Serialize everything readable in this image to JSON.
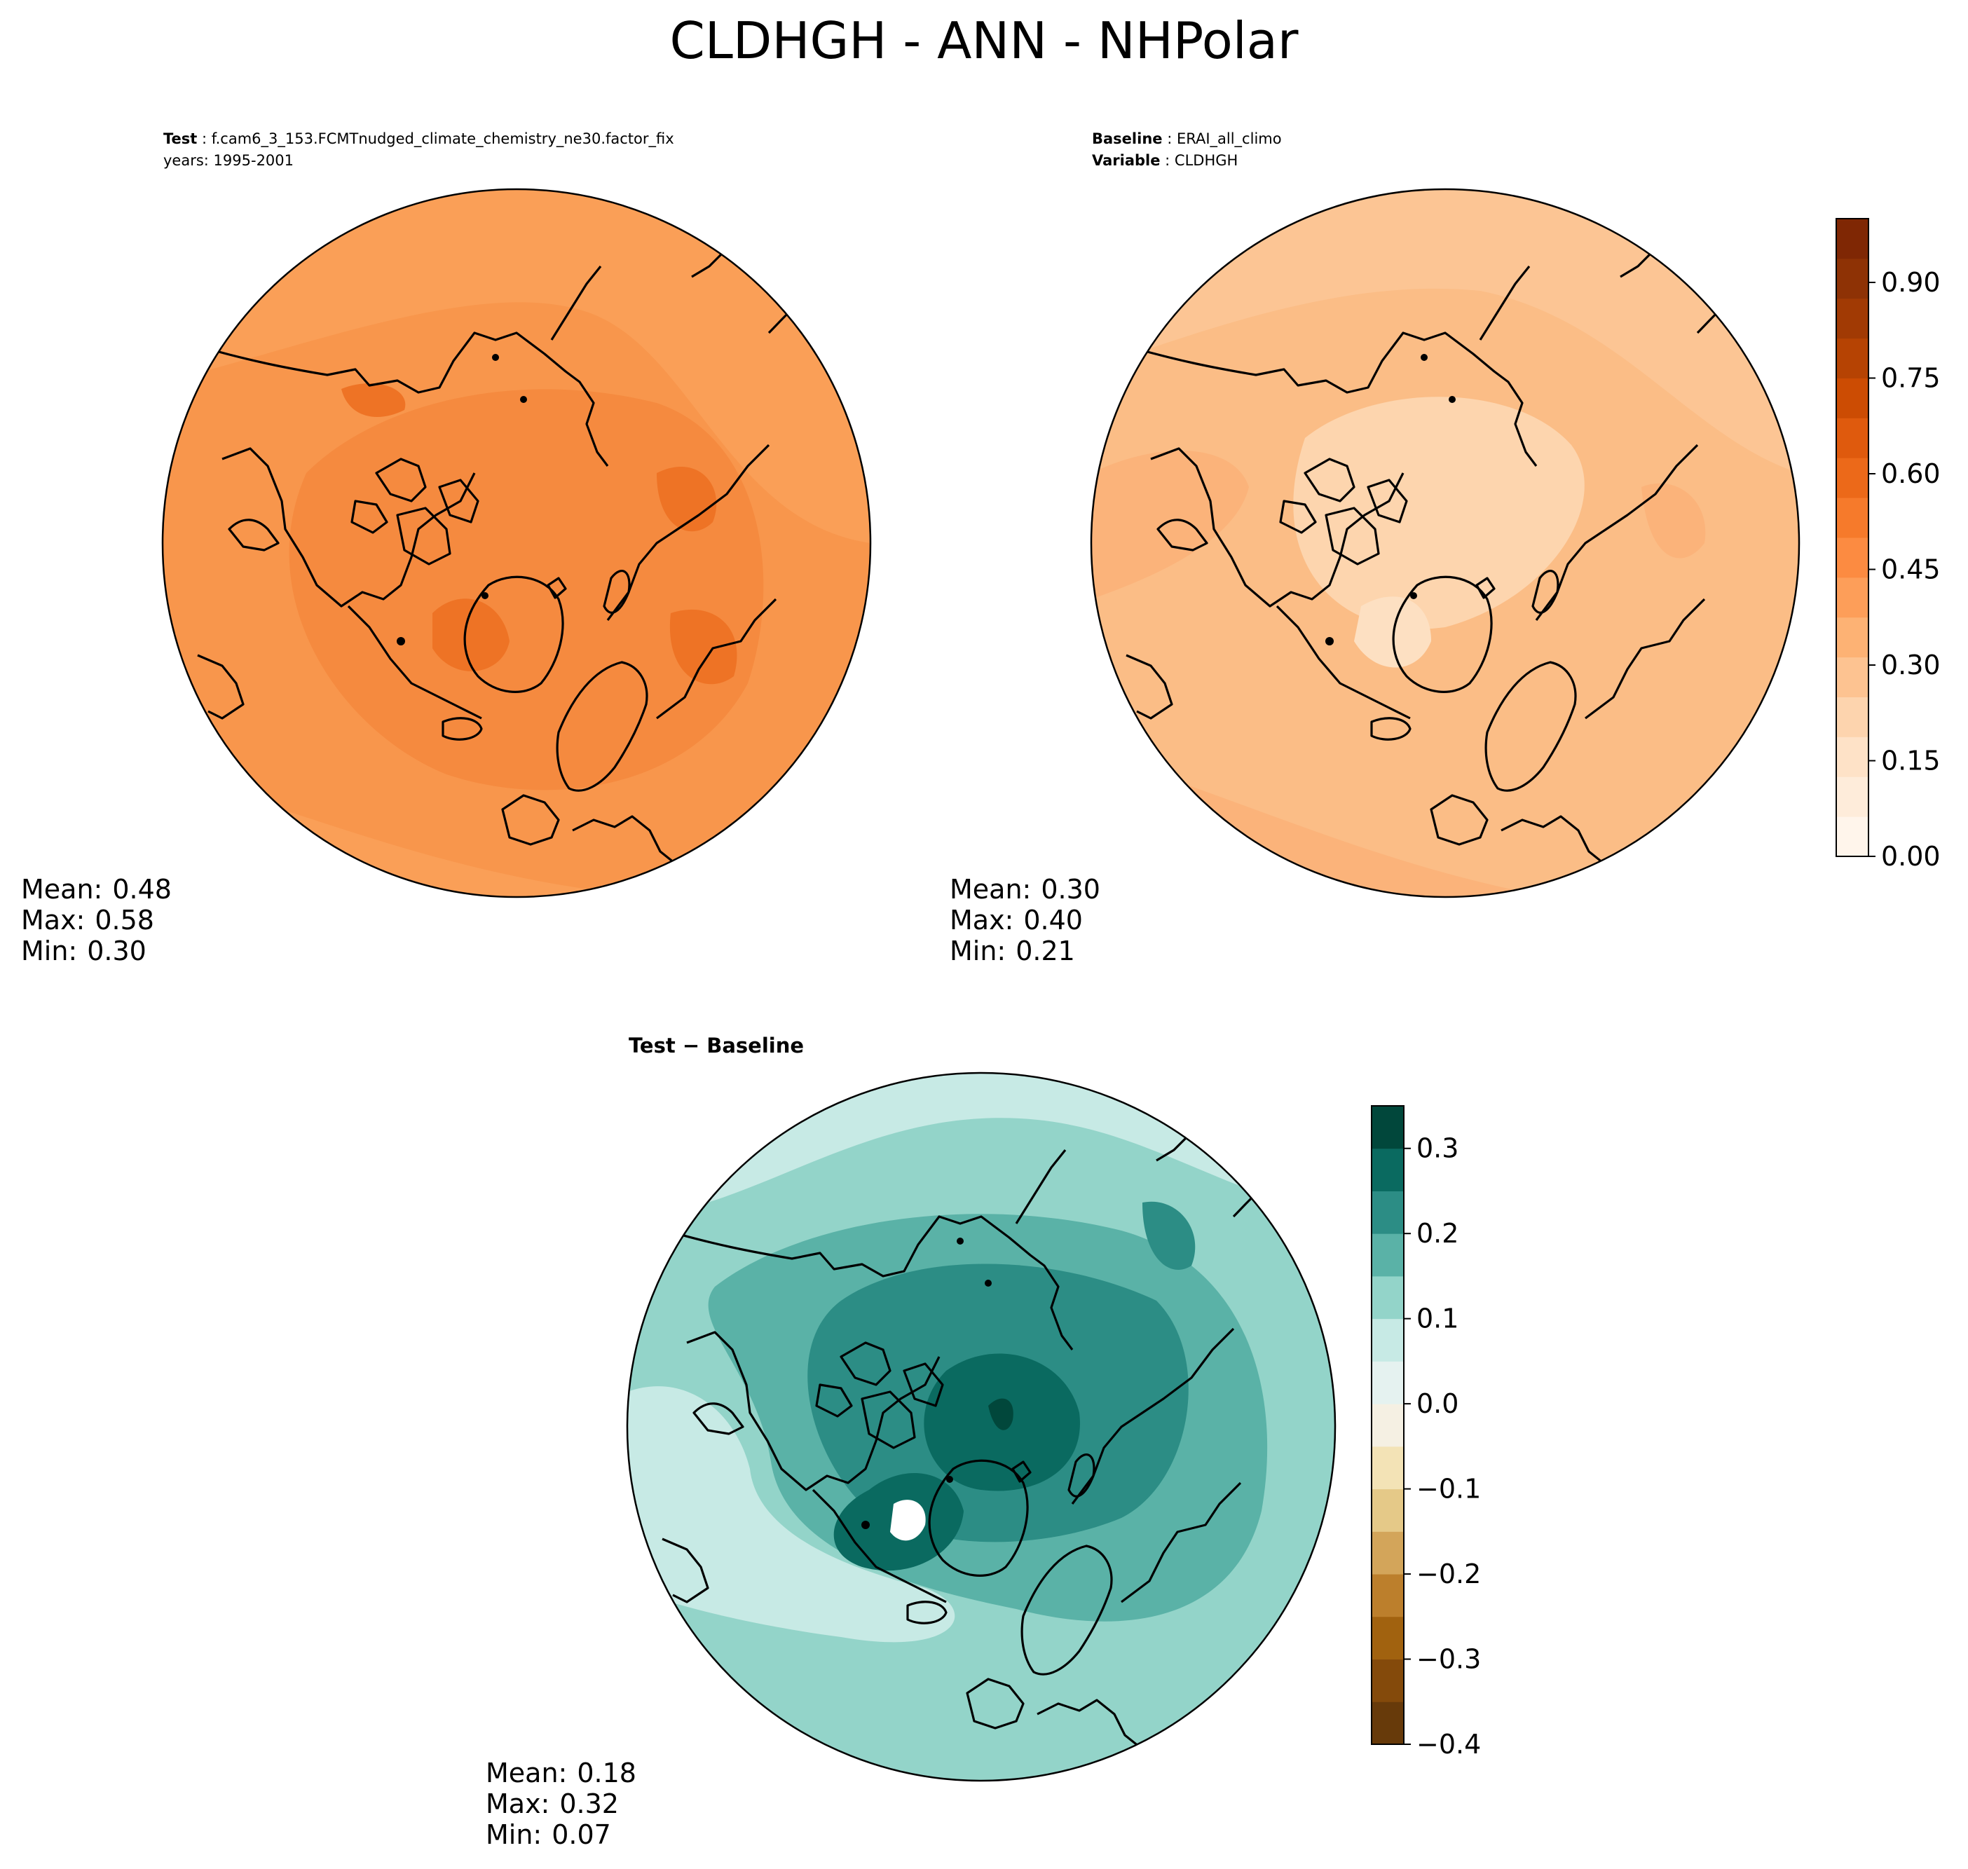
{
  "title": "CLDHGH - ANN - NHPolar",
  "panels": {
    "test": {
      "header_label": "Test",
      "header_value": "f.cam6_3_153.FCMTnudged_climate_chemistry_ne30.factor_fix",
      "header_line2": "years: 1995-2001",
      "mean_label": "Mean:",
      "mean": "0.48",
      "max_label": "Max:",
      "max": "0.58",
      "min_label": "Min:",
      "min": "0.30"
    },
    "baseline": {
      "header_label": "Baseline",
      "header_value": "ERAI_all_climo",
      "header_label2": "Variable",
      "header_value2": "CLDHGH",
      "mean_label": "Mean:",
      "mean": "0.30",
      "max_label": "Max:",
      "max": "0.40",
      "min_label": "Min:",
      "min": "0.21"
    },
    "diff": {
      "header_label": "Test − Baseline",
      "mean_label": "Mean:",
      "mean": "0.18",
      "max_label": "Max:",
      "max": "0.32",
      "min_label": "Min:",
      "min": "0.07"
    }
  },
  "colorbars": {
    "abs": {
      "ticks": [
        "0.00",
        "0.15",
        "0.30",
        "0.45",
        "0.60",
        "0.75",
        "0.90"
      ],
      "tick_values": [
        0,
        0.15,
        0.3,
        0.45,
        0.6,
        0.75,
        0.9
      ],
      "range": [
        0,
        1.0
      ],
      "colors": [
        "#fff5eb",
        "#feecda",
        "#fee2c7",
        "#fdd4ae",
        "#fdc391",
        "#fdb274",
        "#fd9e59",
        "#fc8b41",
        "#f67a2b",
        "#ec6919",
        "#df5a0d",
        "#cc4c03",
        "#b64303",
        "#a13a04",
        "#8e3205",
        "#7f2704"
      ]
    },
    "diff": {
      "ticks": [
        "−0.4",
        "−0.3",
        "−0.2",
        "−0.1",
        "0.0",
        "0.1",
        "0.2",
        "0.3"
      ],
      "tick_values": [
        -0.4,
        -0.3,
        -0.2,
        -0.1,
        0.0,
        0.1,
        0.2,
        0.3
      ],
      "range": [
        -0.4,
        0.35
      ],
      "colors": [
        "#673a0a",
        "#844a0b",
        "#a1620f",
        "#bc7f2c",
        "#d3a55a",
        "#e5c988",
        "#f3e3b6",
        "#f5f0e3",
        "#e5f2f0",
        "#c7eae5",
        "#93d4c9",
        "#5ab2a7",
        "#2c8d85",
        "#0a6a60",
        "#01473b"
      ]
    }
  },
  "map_fill": {
    "test": "#f58a3f",
    "baseline": "#fbba82",
    "diff": "#93d4c9"
  }
}
